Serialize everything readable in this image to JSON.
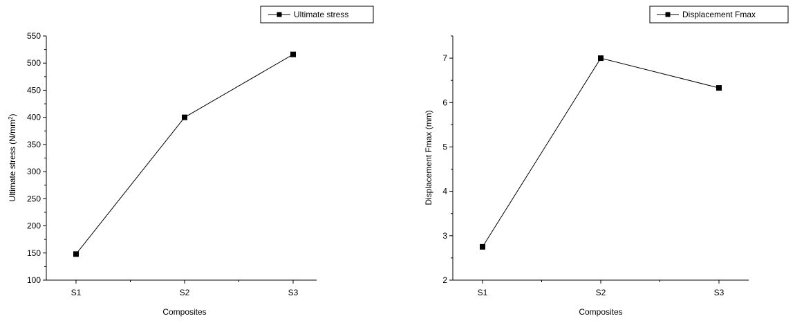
{
  "chart_data": [
    {
      "type": "line",
      "categories": [
        "S1",
        "S2",
        "S3"
      ],
      "series": [
        {
          "name": "Ultimate stress",
          "values": [
            148,
            400,
            516
          ],
          "color": "#000000",
          "marker": "square"
        }
      ],
      "xlabel": "Composites",
      "ylabel": "Ultimate stress (N/mm",
      "ylabel_superscript": "2",
      "ylabel_close": ")",
      "ylim": [
        100,
        550
      ],
      "yticks": [
        100,
        150,
        200,
        250,
        300,
        350,
        400,
        450,
        500,
        550
      ],
      "grid": false,
      "legend_position": "top-right"
    },
    {
      "type": "line",
      "categories": [
        "S1",
        "S2",
        "S3"
      ],
      "series": [
        {
          "name": "Displacement Fmax",
          "values": [
            2.75,
            7.0,
            6.33
          ],
          "color": "#000000",
          "marker": "square"
        }
      ],
      "xlabel": "Composites",
      "ylabel": "Displacement Fmax (mm)",
      "ylim": [
        2,
        7.5
      ],
      "yticks": [
        2,
        3,
        4,
        5,
        6,
        7
      ],
      "grid": false,
      "legend_position": "top-right"
    }
  ]
}
